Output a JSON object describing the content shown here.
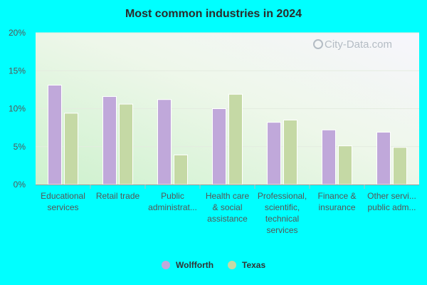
{
  "chart_data": {
    "type": "bar",
    "title": "Most common industries in 2024",
    "categories": [
      [
        "Educational",
        "services"
      ],
      [
        "Retail trade"
      ],
      [
        "Public",
        "administrat..."
      ],
      [
        "Health care",
        "& social",
        "assistance"
      ],
      [
        "Professional,",
        "scientific,",
        "technical",
        "services"
      ],
      [
        "Finance &",
        "insurance"
      ],
      [
        "Other servi...",
        "public adm..."
      ]
    ],
    "series": [
      {
        "name": "Wolfforth",
        "color": "#c0a8da",
        "values": [
          13.1,
          11.6,
          11.2,
          10.0,
          8.2,
          7.2,
          6.9
        ]
      },
      {
        "name": "Texas",
        "color": "#c5d9a5",
        "values": [
          9.4,
          10.6,
          3.9,
          11.9,
          8.5,
          5.1,
          4.9
        ]
      }
    ],
    "yticks": [
      "0%",
      "5%",
      "10%",
      "15%",
      "20%"
    ],
    "ytick_values": [
      0,
      5,
      10,
      15,
      20
    ],
    "ylim": [
      0,
      20
    ],
    "legend_position": "bottom-center",
    "grid": true,
    "watermark": "City-Data.com"
  }
}
